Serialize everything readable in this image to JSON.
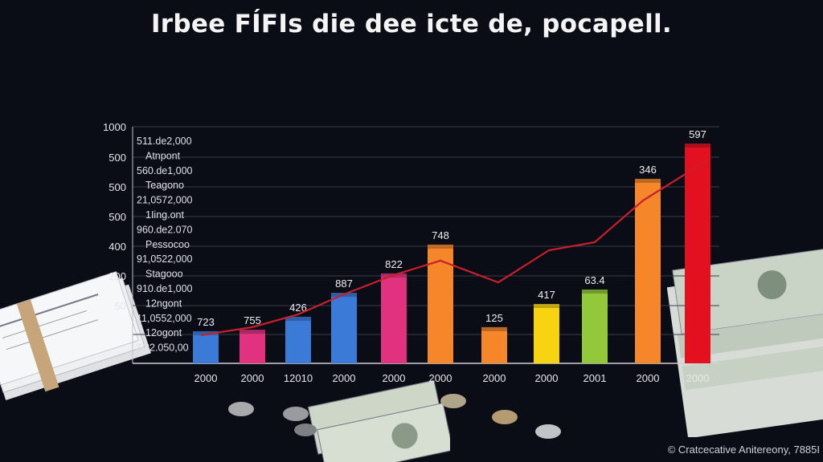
{
  "title": "Irbee FÍFIs die dee icte de, pocapell.",
  "footer": "© Cratcecative Anitereony, 7885I",
  "chart_data": {
    "type": "bar",
    "title": "Irbee FÍFIs die dee icte de, pocapell.",
    "ylim": [
      0,
      1000
    ],
    "grid": true,
    "y_tick_labels": [
      "1000",
      "500",
      "500",
      "500",
      "400",
      "200",
      "50"
    ],
    "y_side_labels": [
      "511.de2,000",
      "Atnpont",
      "560.de1,000",
      "Teagono",
      "21,0572,000",
      "1Iing.ont",
      "960.de2.070",
      "Pessocoo",
      "91,0522,000",
      "Stagooo",
      "910.de1,000",
      "12ngont",
      "11,0552,000",
      "12ogont",
      "$C2.050,00"
    ],
    "categories": [
      "2000",
      "2000",
      "12010",
      "2000",
      "2000",
      "2000",
      "2000",
      "2000",
      "2001",
      "2000",
      "2000"
    ],
    "data_labels": [
      "723",
      "755",
      "426",
      "887",
      "822",
      "748",
      "125",
      "417",
      "63.4",
      "346",
      "597"
    ],
    "bar_levels": [
      119,
      125,
      180,
      281,
      363,
      485,
      136,
      234,
      295,
      763,
      912
    ],
    "bar_colors": [
      "#3b7ad6",
      "#e0327e",
      "#3b7ad6",
      "#3b7ad6",
      "#e0327e",
      "#f5862a",
      "#f5862a",
      "#f7d411",
      "#93c83a",
      "#f5862a",
      "#e3101f"
    ],
    "line_series": {
      "color": "#c8202a",
      "values": [
        119,
        153,
        207,
        292,
        373,
        434,
        342,
        478,
        512,
        688,
        858
      ]
    }
  }
}
